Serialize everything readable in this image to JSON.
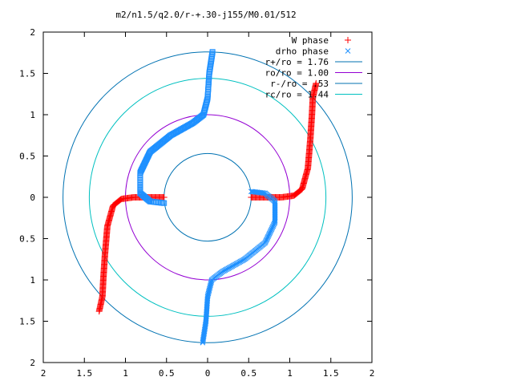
{
  "chart_data": {
    "type": "scatter",
    "title": "m2/n1.5/q2.0/r-+.30-j155/M0.01/512",
    "xlim": [
      -2,
      2
    ],
    "ylim": [
      -2,
      2
    ],
    "x_ticks": [
      "2",
      "1.5",
      "1",
      "0.5",
      "0",
      "0.5",
      "1",
      "1.5",
      "2"
    ],
    "y_ticks": [
      "2",
      "1.5",
      "1",
      "0.5",
      "0",
      "0.5",
      "1",
      "1.5",
      "2"
    ],
    "grid": false,
    "legend_position": "top-right",
    "circles": [
      {
        "name": "r+/ro = 1.76",
        "radius": 1.76,
        "color": "#0072b2"
      },
      {
        "name": "ro/ro = 1.00",
        "radius": 1.0,
        "color": "#9400d3"
      },
      {
        "name": "r-/ro = .53",
        "radius": 0.53,
        "color": "#0072b2"
      },
      {
        "name": "rc/ro = 1.44",
        "radius": 1.44,
        "color": "#00c0c0"
      }
    ],
    "series": [
      {
        "name": "W phase",
        "marker": "+",
        "color": "#ff0000"
      },
      {
        "name": "drho phase",
        "marker": "x",
        "color": "#1e90ff"
      }
    ]
  }
}
